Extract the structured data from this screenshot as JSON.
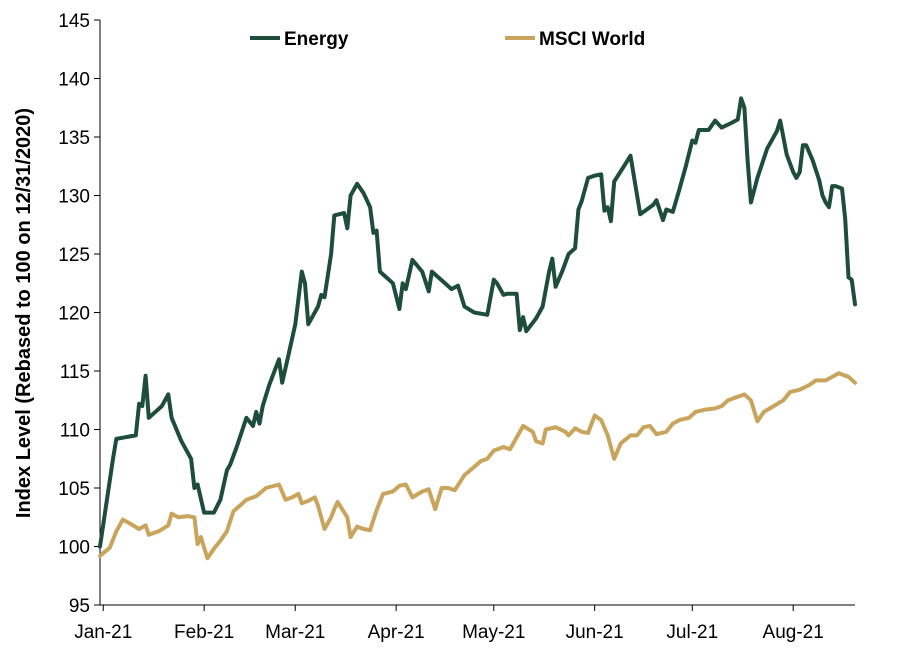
{
  "chart_data": {
    "type": "line",
    "title": "",
    "xlabel": "",
    "ylabel": "Index Level (Rebased to 100 on 12/31/2020)",
    "ylim": [
      95,
      145
    ],
    "yticks": [
      "95",
      "100",
      "105",
      "110",
      "115",
      "120",
      "125",
      "130",
      "135",
      "140",
      "145"
    ],
    "xticks": [
      "Jan-21",
      "Feb-21",
      "Mar-21",
      "Apr-21",
      "May-21",
      "Jun-21",
      "Jul-21",
      "Aug-21"
    ],
    "x_range": [
      "2020-12-31",
      "2021-08-20"
    ],
    "grid": false,
    "legend_position": "top",
    "series": [
      {
        "name": "Energy",
        "color": "#1e4d3c",
        "points": [
          [
            "2020-12-31",
            100.0
          ],
          [
            "2021-01-04",
            107.5
          ],
          [
            "2021-01-05",
            109.2
          ],
          [
            "2021-01-07",
            109.3
          ],
          [
            "2021-01-11",
            109.5
          ],
          [
            "2021-01-12",
            112.2
          ],
          [
            "2021-01-13",
            112.0
          ],
          [
            "2021-01-14",
            114.6
          ],
          [
            "2021-01-15",
            111.0
          ],
          [
            "2021-01-19",
            112.0
          ],
          [
            "2021-01-21",
            113.0
          ],
          [
            "2021-01-22",
            111.0
          ],
          [
            "2021-01-25",
            109.0
          ],
          [
            "2021-01-28",
            107.5
          ],
          [
            "2021-01-29",
            105.0
          ],
          [
            "2021-01-30",
            105.3
          ],
          [
            "2021-02-01",
            102.9
          ],
          [
            "2021-02-04",
            102.9
          ],
          [
            "2021-02-06",
            104.0
          ],
          [
            "2021-02-08",
            106.5
          ],
          [
            "2021-02-09",
            107.0
          ],
          [
            "2021-02-11",
            108.5
          ],
          [
            "2021-02-14",
            111.0
          ],
          [
            "2021-02-16",
            110.3
          ],
          [
            "2021-02-17",
            111.5
          ],
          [
            "2021-02-18",
            110.5
          ],
          [
            "2021-02-19",
            112.0
          ],
          [
            "2021-02-21",
            113.8
          ],
          [
            "2021-02-24",
            116.0
          ],
          [
            "2021-02-25",
            114.0
          ],
          [
            "2021-02-27",
            116.5
          ],
          [
            "2021-03-01",
            119.0
          ],
          [
            "2021-03-03",
            123.5
          ],
          [
            "2021-03-04",
            122.5
          ],
          [
            "2021-03-05",
            119.0
          ],
          [
            "2021-03-08",
            120.5
          ],
          [
            "2021-03-09",
            121.5
          ],
          [
            "2021-03-10",
            121.3
          ],
          [
            "2021-03-12",
            125.0
          ],
          [
            "2021-03-13",
            128.3
          ],
          [
            "2021-03-16",
            128.5
          ],
          [
            "2021-03-17",
            127.2
          ],
          [
            "2021-03-18",
            130.0
          ],
          [
            "2021-03-20",
            131.0
          ],
          [
            "2021-03-22",
            130.2
          ],
          [
            "2021-03-24",
            129.0
          ],
          [
            "2021-03-25",
            126.8
          ],
          [
            "2021-03-26",
            127.0
          ],
          [
            "2021-03-27",
            123.5
          ],
          [
            "2021-03-29",
            123.0
          ],
          [
            "2021-03-31",
            122.5
          ],
          [
            "2021-04-02",
            120.3
          ],
          [
            "2021-04-03",
            122.5
          ],
          [
            "2021-04-04",
            122.0
          ],
          [
            "2021-04-06",
            124.5
          ],
          [
            "2021-04-09",
            123.5
          ],
          [
            "2021-04-11",
            121.8
          ],
          [
            "2021-04-12",
            123.5
          ],
          [
            "2021-04-14",
            123.0
          ],
          [
            "2021-04-16",
            122.5
          ],
          [
            "2021-04-18",
            122.0
          ],
          [
            "2021-04-20",
            122.3
          ],
          [
            "2021-04-22",
            120.5
          ],
          [
            "2021-04-25",
            120.0
          ],
          [
            "2021-04-29",
            119.8
          ],
          [
            "2021-05-01",
            122.8
          ],
          [
            "2021-05-02",
            122.5
          ],
          [
            "2021-05-04",
            121.5
          ],
          [
            "2021-05-05",
            121.6
          ],
          [
            "2021-05-08",
            121.6
          ],
          [
            "2021-05-09",
            118.5
          ],
          [
            "2021-05-10",
            119.6
          ],
          [
            "2021-05-11",
            118.4
          ],
          [
            "2021-05-14",
            119.5
          ],
          [
            "2021-05-16",
            120.5
          ],
          [
            "2021-05-18",
            123.5
          ],
          [
            "2021-05-19",
            124.6
          ],
          [
            "2021-05-20",
            122.2
          ],
          [
            "2021-05-22",
            123.5
          ],
          [
            "2021-05-24",
            125.0
          ],
          [
            "2021-05-26",
            125.5
          ],
          [
            "2021-05-27",
            128.8
          ],
          [
            "2021-05-28",
            129.5
          ],
          [
            "2021-05-30",
            131.5
          ],
          [
            "2021-06-01",
            131.7
          ],
          [
            "2021-06-03",
            131.8
          ],
          [
            "2021-06-04",
            128.7
          ],
          [
            "2021-06-05",
            129.0
          ],
          [
            "2021-06-06",
            127.8
          ],
          [
            "2021-06-07",
            131.2
          ],
          [
            "2021-06-10",
            132.5
          ],
          [
            "2021-06-12",
            133.4
          ],
          [
            "2021-06-15",
            128.4
          ],
          [
            "2021-06-19",
            129.2
          ],
          [
            "2021-06-20",
            129.6
          ],
          [
            "2021-06-22",
            127.9
          ],
          [
            "2021-06-23",
            128.8
          ],
          [
            "2021-06-25",
            128.6
          ],
          [
            "2021-06-27",
            130.5
          ],
          [
            "2021-06-29",
            132.5
          ],
          [
            "2021-07-01",
            134.7
          ],
          [
            "2021-07-02",
            134.5
          ],
          [
            "2021-07-03",
            135.6
          ],
          [
            "2021-07-06",
            135.6
          ],
          [
            "2021-07-08",
            136.4
          ],
          [
            "2021-07-10",
            135.8
          ],
          [
            "2021-07-13",
            136.2
          ],
          [
            "2021-07-15",
            136.5
          ],
          [
            "2021-07-16",
            138.3
          ],
          [
            "2021-07-17",
            137.5
          ],
          [
            "2021-07-18",
            133.0
          ],
          [
            "2021-07-19",
            129.4
          ],
          [
            "2021-07-21",
            131.5
          ],
          [
            "2021-07-24",
            134.0
          ],
          [
            "2021-07-27",
            135.5
          ],
          [
            "2021-07-28",
            136.4
          ],
          [
            "2021-07-30",
            133.5
          ],
          [
            "2021-08-01",
            132.0
          ],
          [
            "2021-08-02",
            131.5
          ],
          [
            "2021-08-03",
            132.0
          ],
          [
            "2021-08-04",
            134.3
          ],
          [
            "2021-08-05",
            134.3
          ],
          [
            "2021-08-07",
            133.0
          ],
          [
            "2021-08-09",
            131.3
          ],
          [
            "2021-08-10",
            130.0
          ],
          [
            "2021-08-11",
            129.4
          ],
          [
            "2021-08-12",
            129.0
          ],
          [
            "2021-08-13",
            130.8
          ],
          [
            "2021-08-14",
            130.8
          ],
          [
            "2021-08-16",
            130.6
          ],
          [
            "2021-08-17",
            128.0
          ],
          [
            "2021-08-18",
            123.0
          ],
          [
            "2021-08-19",
            122.8
          ],
          [
            "2021-08-20",
            120.7
          ]
        ]
      },
      {
        "name": "MSCI World",
        "color": "#c9a45c",
        "points": [
          [
            "2020-12-31",
            99.2
          ],
          [
            "2021-01-03",
            99.9
          ],
          [
            "2021-01-05",
            101.3
          ],
          [
            "2021-01-07",
            102.3
          ],
          [
            "2021-01-09",
            102.0
          ],
          [
            "2021-01-12",
            101.5
          ],
          [
            "2021-01-14",
            101.8
          ],
          [
            "2021-01-15",
            101.0
          ],
          [
            "2021-01-18",
            101.3
          ],
          [
            "2021-01-21",
            101.8
          ],
          [
            "2021-01-22",
            102.8
          ],
          [
            "2021-01-24",
            102.5
          ],
          [
            "2021-01-27",
            102.6
          ],
          [
            "2021-01-29",
            102.5
          ],
          [
            "2021-01-30",
            100.2
          ],
          [
            "2021-01-31",
            100.8
          ],
          [
            "2021-02-02",
            99.0
          ],
          [
            "2021-02-04",
            99.8
          ],
          [
            "2021-02-06",
            100.5
          ],
          [
            "2021-02-08",
            101.3
          ],
          [
            "2021-02-10",
            103.0
          ],
          [
            "2021-02-12",
            103.5
          ],
          [
            "2021-02-14",
            104.0
          ],
          [
            "2021-02-17",
            104.3
          ],
          [
            "2021-02-20",
            105.0
          ],
          [
            "2021-02-24",
            105.3
          ],
          [
            "2021-02-26",
            104.0
          ],
          [
            "2021-02-28",
            104.2
          ],
          [
            "2021-03-02",
            104.5
          ],
          [
            "2021-03-03",
            103.7
          ],
          [
            "2021-03-05",
            103.9
          ],
          [
            "2021-03-07",
            104.2
          ],
          [
            "2021-03-08",
            103.5
          ],
          [
            "2021-03-10",
            101.5
          ],
          [
            "2021-03-12",
            102.5
          ],
          [
            "2021-03-13",
            103.2
          ],
          [
            "2021-03-14",
            103.8
          ],
          [
            "2021-03-17",
            102.5
          ],
          [
            "2021-03-18",
            100.8
          ],
          [
            "2021-03-20",
            101.7
          ],
          [
            "2021-03-22",
            101.5
          ],
          [
            "2021-03-24",
            101.4
          ],
          [
            "2021-03-26",
            103.1
          ],
          [
            "2021-03-28",
            104.5
          ],
          [
            "2021-03-31",
            104.7
          ],
          [
            "2021-04-02",
            105.2
          ],
          [
            "2021-04-04",
            105.3
          ],
          [
            "2021-04-06",
            104.2
          ],
          [
            "2021-04-09",
            104.7
          ],
          [
            "2021-04-11",
            104.9
          ],
          [
            "2021-04-13",
            103.2
          ],
          [
            "2021-04-15",
            105.0
          ],
          [
            "2021-04-17",
            105.0
          ],
          [
            "2021-04-19",
            104.8
          ],
          [
            "2021-04-22",
            106.1
          ],
          [
            "2021-04-25",
            106.8
          ],
          [
            "2021-04-27",
            107.3
          ],
          [
            "2021-04-29",
            107.5
          ],
          [
            "2021-05-01",
            108.2
          ],
          [
            "2021-05-04",
            108.5
          ],
          [
            "2021-05-06",
            108.3
          ],
          [
            "2021-05-07",
            108.8
          ],
          [
            "2021-05-10",
            110.3
          ],
          [
            "2021-05-13",
            109.8
          ],
          [
            "2021-05-14",
            109.0
          ],
          [
            "2021-05-16",
            108.8
          ],
          [
            "2021-05-17",
            110.0
          ],
          [
            "2021-05-20",
            110.2
          ],
          [
            "2021-05-23",
            109.8
          ],
          [
            "2021-05-24",
            109.5
          ],
          [
            "2021-05-26",
            110.1
          ],
          [
            "2021-05-28",
            109.8
          ],
          [
            "2021-05-30",
            109.7
          ],
          [
            "2021-06-01",
            111.2
          ],
          [
            "2021-06-03",
            110.8
          ],
          [
            "2021-06-05",
            109.5
          ],
          [
            "2021-06-07",
            107.5
          ],
          [
            "2021-06-09",
            108.8
          ],
          [
            "2021-06-12",
            109.5
          ],
          [
            "2021-06-14",
            109.5
          ],
          [
            "2021-06-16",
            110.2
          ],
          [
            "2021-06-18",
            110.3
          ],
          [
            "2021-06-20",
            109.6
          ],
          [
            "2021-06-23",
            109.8
          ],
          [
            "2021-06-25",
            110.5
          ],
          [
            "2021-06-27",
            110.8
          ],
          [
            "2021-06-30",
            111.0
          ],
          [
            "2021-07-02",
            111.5
          ],
          [
            "2021-07-05",
            111.7
          ],
          [
            "2021-07-08",
            111.8
          ],
          [
            "2021-07-10",
            112.0
          ],
          [
            "2021-07-12",
            112.5
          ],
          [
            "2021-07-15",
            112.8
          ],
          [
            "2021-07-17",
            113.0
          ],
          [
            "2021-07-19",
            112.5
          ],
          [
            "2021-07-21",
            110.7
          ],
          [
            "2021-07-23",
            111.5
          ],
          [
            "2021-07-26",
            112.0
          ],
          [
            "2021-07-29",
            112.5
          ],
          [
            "2021-07-31",
            113.2
          ],
          [
            "2021-08-03",
            113.4
          ],
          [
            "2021-08-06",
            113.8
          ],
          [
            "2021-08-08",
            114.2
          ],
          [
            "2021-08-11",
            114.2
          ],
          [
            "2021-08-13",
            114.5
          ],
          [
            "2021-08-15",
            114.8
          ],
          [
            "2021-08-18",
            114.5
          ],
          [
            "2021-08-20",
            114.0
          ]
        ]
      }
    ]
  }
}
